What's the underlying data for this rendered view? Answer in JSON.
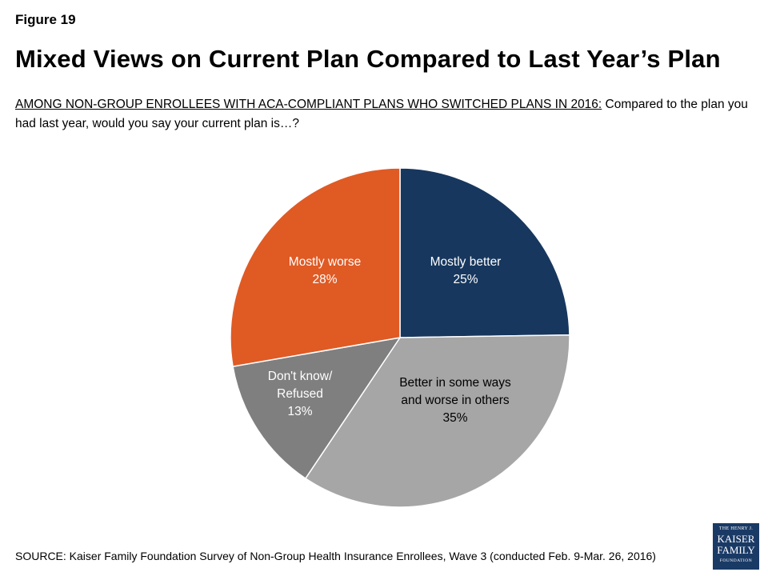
{
  "figure_label": "Figure 19",
  "title": "Mixed Views on Current Plan Compared to Last Year’s Plan",
  "question": {
    "prefix": "AMONG NON-GROUP ENROLLEES WITH ACA-COMPLIANT PLANS WHO SWITCHED PLANS IN 2016:",
    "text": " Compared to the plan you had last year, would you say your current plan is…?"
  },
  "source": "SOURCE: Kaiser Family Foundation Survey of Non-Group Health Insurance Enrollees, Wave 3 (conducted Feb. 9-Mar. 26, 2016)",
  "logo": {
    "line1": "THE HENRY J.",
    "line2": "KAISER",
    "line3": "FAMILY",
    "line4": "FOUNDATION"
  },
  "chart_data": {
    "type": "pie",
    "start_angle_deg": 0,
    "direction": "clockwise",
    "slices": [
      {
        "label_lines": [
          "Mostly better"
        ],
        "value": 25,
        "display": "25%",
        "color": "#17375e",
        "text_color": "#ffffff"
      },
      {
        "label_lines": [
          "Better in some ways",
          "and worse in others"
        ],
        "value": 35,
        "display": "35%",
        "color": "#a6a6a6",
        "text_color": "#000000"
      },
      {
        "label_lines": [
          "Don't know/",
          "Refused"
        ],
        "value": 13,
        "display": "13%",
        "color": "#7f7f7f",
        "text_color": "#ffffff"
      },
      {
        "label_lines": [
          "Mostly worse"
        ],
        "value": 28,
        "display": "28%",
        "color": "#e05a24",
        "text_color": "#ffffff"
      }
    ]
  }
}
